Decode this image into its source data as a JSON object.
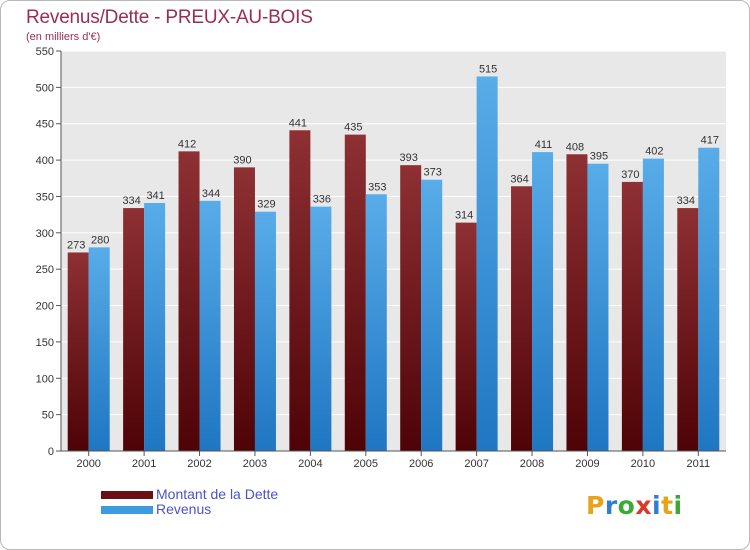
{
  "header": {
    "title": "Revenus/Dette - PREUX-AU-BOIS",
    "subtitle": "(en milliers d'€)"
  },
  "chart_data": {
    "type": "bar",
    "title": "Revenus/Dette - PREUX-AU-BOIS",
    "subtitle": "(en milliers d'€)",
    "xlabel": "",
    "ylabel": "",
    "categories": [
      "2000",
      "2001",
      "2002",
      "2003",
      "2004",
      "2005",
      "2006",
      "2007",
      "2008",
      "2009",
      "2010",
      "2011"
    ],
    "series": [
      {
        "name": "Montant de la Dette",
        "color": "#7a1e22",
        "values": [
          273,
          334,
          412,
          390,
          441,
          435,
          393,
          314,
          364,
          408,
          370,
          334
        ]
      },
      {
        "name": "Revenus",
        "color": "#3d9be0",
        "values": [
          280,
          341,
          344,
          329,
          336,
          353,
          373,
          515,
          411,
          395,
          402,
          417
        ]
      }
    ],
    "ylim": [
      0,
      550
    ],
    "yticks": [
      0,
      50,
      100,
      150,
      200,
      250,
      300,
      350,
      400,
      450,
      500,
      550
    ],
    "grid": true,
    "legend_position": "bottom-left"
  },
  "legend": {
    "items": [
      {
        "label": "Montant de la Dette",
        "color": "#6a0f14"
      },
      {
        "label": "Revenus",
        "color": "#3d9be0"
      }
    ]
  },
  "logo": {
    "letters": [
      "P",
      "r",
      "o",
      "x",
      "i",
      "t",
      "i"
    ],
    "colors": [
      "#e8a317",
      "#2f7fd0",
      "#3aa935",
      "#d93a2b",
      "#2f7fd0",
      "#e8a317",
      "#3aa935"
    ]
  }
}
